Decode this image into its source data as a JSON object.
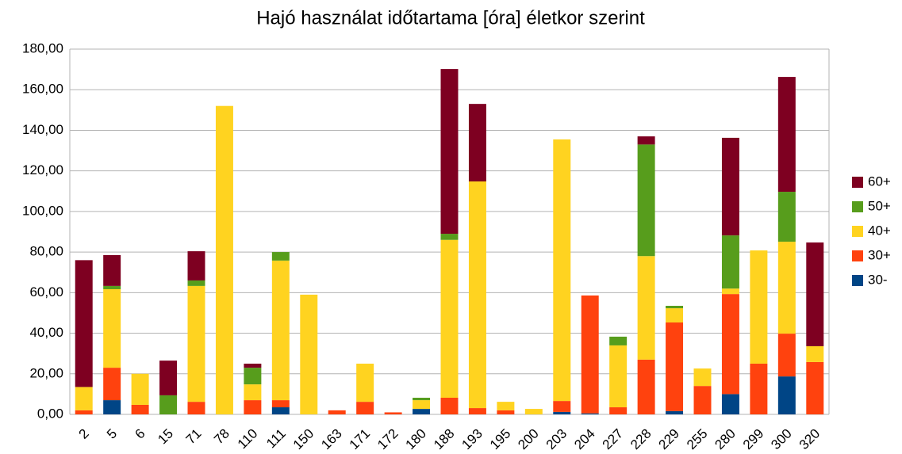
{
  "chart_data": {
    "type": "stacked_bar",
    "title": "Hajó használat időtartama [óra] életkor szerint",
    "categories": [
      "2",
      "5",
      "6",
      "15",
      "71",
      "78",
      "110",
      "111",
      "150",
      "163",
      "171",
      "172",
      "180",
      "188",
      "193",
      "195",
      "200",
      "203",
      "204",
      "227",
      "228",
      "229",
      "255",
      "280",
      "299",
      "300",
      "320"
    ],
    "series": [
      {
        "name": "30-",
        "color": "#004586",
        "values": [
          0,
          7,
          0,
          0,
          0,
          0,
          0,
          3.5,
          0,
          0,
          0,
          0,
          2.7,
          0,
          0,
          0,
          0,
          1.2,
          0.5,
          0,
          0,
          1.6,
          0,
          10,
          0,
          18.7,
          0
        ]
      },
      {
        "name": "30+",
        "color": "#ff420e",
        "values": [
          2,
          16,
          4.7,
          0,
          6.2,
          0,
          7,
          3.5,
          0,
          2,
          6.2,
          1,
          0,
          8.2,
          3.1,
          2,
          0,
          5.4,
          58.1,
          3.5,
          27,
          43.7,
          14,
          49.3,
          25,
          21.1,
          25.8
        ]
      },
      {
        "name": "40+",
        "color": "#ffd320",
        "values": [
          11.5,
          38.7,
          15.3,
          0,
          57.1,
          152,
          7.8,
          68.8,
          59,
          0,
          18.8,
          0,
          4.3,
          77.8,
          111.7,
          4.2,
          2.7,
          128.9,
          0,
          30.5,
          51,
          7,
          8.6,
          2.7,
          55.8,
          45.3,
          7.8
        ]
      },
      {
        "name": "50+",
        "color": "#579d1c",
        "values": [
          0,
          1.6,
          0,
          9.4,
          2.7,
          0,
          8.2,
          4.2,
          0,
          0,
          0,
          0,
          1.2,
          3,
          0,
          0,
          0,
          0,
          0,
          4.3,
          55,
          1.2,
          0,
          26.2,
          0,
          24.6,
          0
        ]
      },
      {
        "name": "60+",
        "color": "#7e0021",
        "values": [
          62.5,
          15.2,
          0,
          17.1,
          14.4,
          0,
          2,
          0,
          0,
          0,
          0,
          0,
          0,
          81.2,
          38.2,
          0,
          0,
          0,
          0,
          0,
          4,
          0,
          0,
          48.1,
          0,
          56.6,
          51.1
        ]
      }
    ],
    "ylim": [
      0,
      180
    ],
    "yticks": [
      {
        "value": 0,
        "label": "0,00"
      },
      {
        "value": 20,
        "label": "20,00"
      },
      {
        "value": 40,
        "label": "40,00"
      },
      {
        "value": 60,
        "label": "60,00"
      },
      {
        "value": 80,
        "label": "80,00"
      },
      {
        "value": 100,
        "label": "100,00"
      },
      {
        "value": 120,
        "label": "120,00"
      },
      {
        "value": 140,
        "label": "140,00"
      },
      {
        "value": 160,
        "label": "160,00"
      },
      {
        "value": 180,
        "label": "180,00"
      }
    ],
    "grid": true,
    "legend": "right"
  }
}
